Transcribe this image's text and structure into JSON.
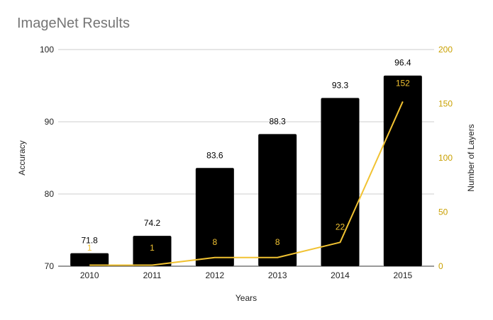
{
  "chart_data": {
    "type": "bar",
    "title": "ImageNet Results",
    "categories": [
      "2010",
      "2011",
      "2012",
      "2013",
      "2014",
      "2015"
    ],
    "series": [
      {
        "name": "Accuracy",
        "type": "bar",
        "axis": "left",
        "values": [
          71.8,
          74.2,
          83.6,
          88.3,
          93.3,
          96.4
        ],
        "labels": [
          "71.8",
          "74.2",
          "83.6",
          "88.3",
          "93.3",
          "96.4"
        ],
        "color": "#000000"
      },
      {
        "name": "Number of Layers",
        "type": "line",
        "axis": "right",
        "values": [
          1,
          1,
          8,
          8,
          22,
          152
        ],
        "labels": [
          "1",
          "1",
          "8",
          "8",
          "22",
          "152"
        ],
        "color": "#f1c232"
      }
    ],
    "xlabel": "Years",
    "ylabel": "Accuracy",
    "y2label": "Number of Layers",
    "ylim": [
      70,
      100
    ],
    "y2lim": [
      0,
      200
    ],
    "yticks": [
      "70",
      "80",
      "90",
      "100"
    ],
    "y2ticks": [
      "0",
      "50",
      "100",
      "150",
      "200"
    ],
    "grid": true,
    "legend": "none"
  }
}
